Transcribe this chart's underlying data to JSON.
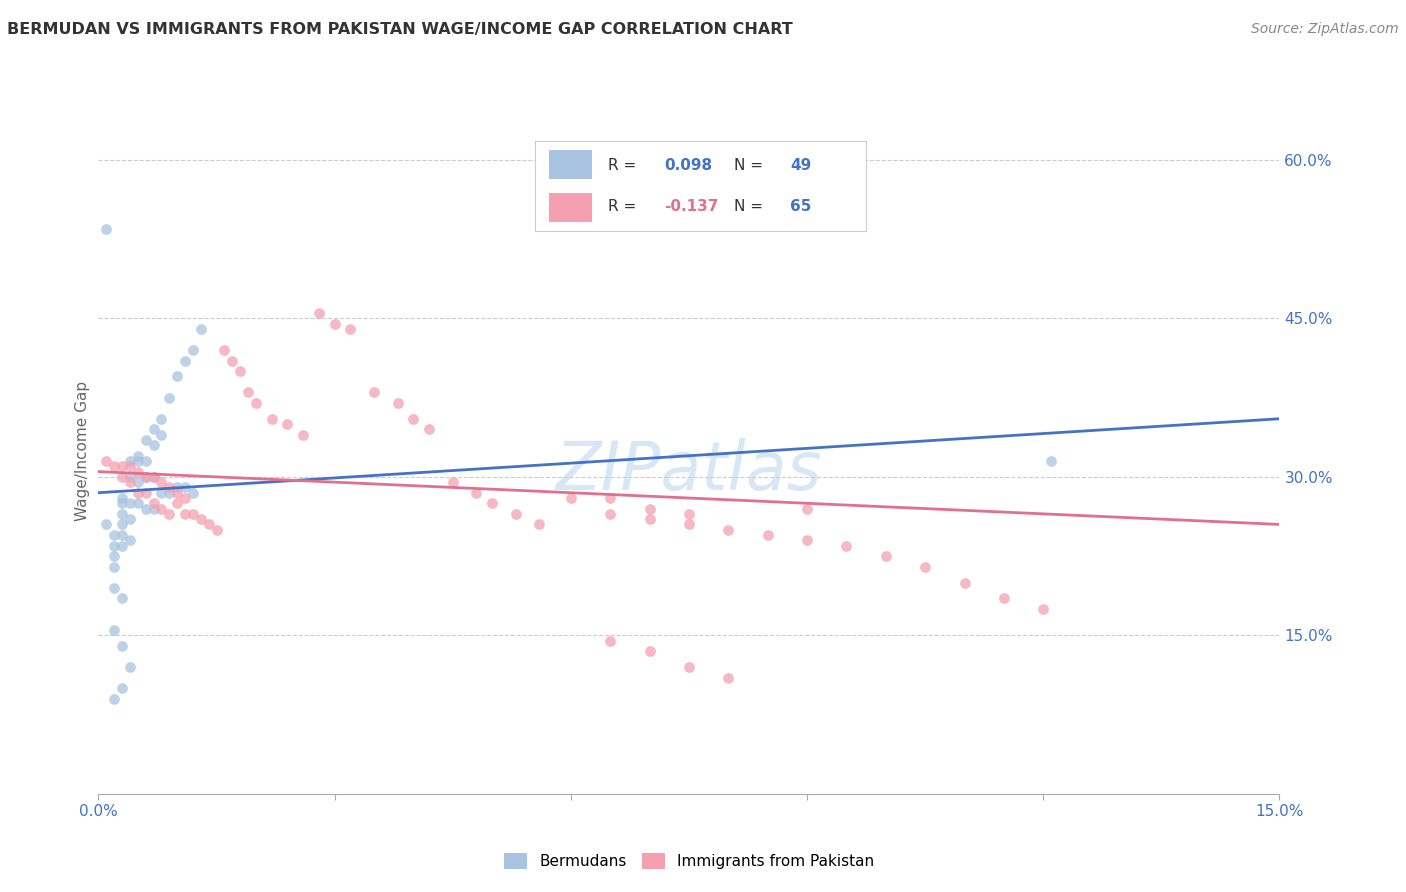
{
  "title": "BERMUDAN VS IMMIGRANTS FROM PAKISTAN WAGE/INCOME GAP CORRELATION CHART",
  "source": "Source: ZipAtlas.com",
  "ylabel": "Wage/Income Gap",
  "x_min": 0.0,
  "x_max": 0.15,
  "y_min": 0.0,
  "y_max": 0.65,
  "x_tick_positions": [
    0.0,
    0.03,
    0.06,
    0.09,
    0.12,
    0.15
  ],
  "x_tick_labels": [
    "0.0%",
    "",
    "",
    "",
    "",
    "15.0%"
  ],
  "y_tick_positions": [
    0.15,
    0.3,
    0.45,
    0.6
  ],
  "y_tick_labels": [
    "15.0%",
    "30.0%",
    "45.0%",
    "60.0%"
  ],
  "blue_color": "#a8c4e0",
  "pink_color": "#f4a0b0",
  "blue_line_color": "#4472c4",
  "pink_line_color": "#e07090",
  "watermark": "ZIPatlas",
  "marker_size": 60,
  "marker_alpha": 0.75,
  "blue_x": [
    0.001,
    0.001,
    0.002,
    0.002,
    0.002,
    0.002,
    0.002,
    0.003,
    0.003,
    0.003,
    0.003,
    0.003,
    0.003,
    0.003,
    0.004,
    0.004,
    0.004,
    0.004,
    0.004,
    0.005,
    0.005,
    0.005,
    0.005,
    0.006,
    0.006,
    0.006,
    0.006,
    0.007,
    0.007,
    0.007,
    0.007,
    0.008,
    0.008,
    0.008,
    0.009,
    0.009,
    0.01,
    0.01,
    0.011,
    0.011,
    0.012,
    0.012,
    0.013,
    0.002,
    0.003,
    0.004,
    0.003,
    0.002,
    0.121
  ],
  "blue_y": [
    0.535,
    0.255,
    0.245,
    0.235,
    0.225,
    0.215,
    0.195,
    0.28,
    0.275,
    0.265,
    0.255,
    0.245,
    0.235,
    0.185,
    0.315,
    0.3,
    0.275,
    0.26,
    0.24,
    0.32,
    0.315,
    0.295,
    0.275,
    0.335,
    0.315,
    0.3,
    0.27,
    0.345,
    0.33,
    0.3,
    0.27,
    0.355,
    0.34,
    0.285,
    0.375,
    0.285,
    0.395,
    0.29,
    0.41,
    0.29,
    0.42,
    0.285,
    0.44,
    0.155,
    0.14,
    0.12,
    0.1,
    0.09,
    0.315
  ],
  "pink_x": [
    0.001,
    0.002,
    0.003,
    0.003,
    0.004,
    0.004,
    0.005,
    0.005,
    0.006,
    0.006,
    0.007,
    0.007,
    0.008,
    0.008,
    0.009,
    0.009,
    0.01,
    0.01,
    0.011,
    0.011,
    0.012,
    0.013,
    0.014,
    0.015,
    0.016,
    0.017,
    0.018,
    0.019,
    0.02,
    0.022,
    0.024,
    0.026,
    0.028,
    0.03,
    0.032,
    0.035,
    0.038,
    0.04,
    0.042,
    0.045,
    0.048,
    0.05,
    0.053,
    0.056,
    0.06,
    0.065,
    0.07,
    0.075,
    0.065,
    0.07,
    0.075,
    0.08,
    0.085,
    0.09,
    0.09,
    0.095,
    0.1,
    0.105,
    0.11,
    0.115,
    0.12,
    0.065,
    0.07,
    0.075,
    0.08
  ],
  "pink_y": [
    0.315,
    0.31,
    0.31,
    0.3,
    0.31,
    0.295,
    0.305,
    0.285,
    0.3,
    0.285,
    0.3,
    0.275,
    0.295,
    0.27,
    0.29,
    0.265,
    0.285,
    0.275,
    0.28,
    0.265,
    0.265,
    0.26,
    0.255,
    0.25,
    0.42,
    0.41,
    0.4,
    0.38,
    0.37,
    0.355,
    0.35,
    0.34,
    0.455,
    0.445,
    0.44,
    0.38,
    0.37,
    0.355,
    0.345,
    0.295,
    0.285,
    0.275,
    0.265,
    0.255,
    0.28,
    0.28,
    0.27,
    0.265,
    0.265,
    0.26,
    0.255,
    0.25,
    0.245,
    0.24,
    0.27,
    0.235,
    0.225,
    0.215,
    0.2,
    0.185,
    0.175,
    0.145,
    0.135,
    0.12,
    0.11
  ]
}
